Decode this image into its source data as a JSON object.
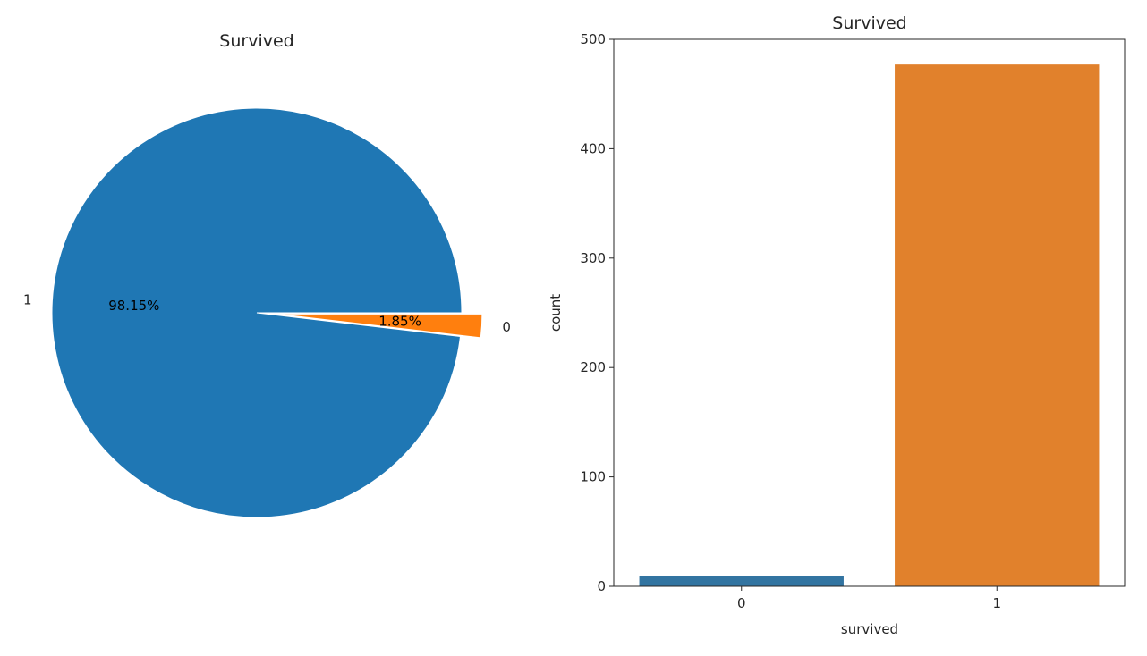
{
  "chart_data": [
    {
      "type": "pie",
      "title": "Survived",
      "labels": [
        "1",
        "0"
      ],
      "values": [
        98.15,
        1.85
      ],
      "pct_labels": [
        "98.15%",
        "1.85%"
      ],
      "colors": [
        "#1f77b4",
        "#ff7f0e"
      ],
      "explode": [
        0,
        0.1
      ],
      "legend": "none"
    },
    {
      "type": "bar",
      "title": "Survived",
      "xlabel": "survived",
      "ylabel": "count",
      "categories": [
        "0",
        "1"
      ],
      "values": [
        9,
        477
      ],
      "colors": [
        "#3274a1",
        "#e1812c"
      ],
      "ylim": [
        0,
        500
      ],
      "yticks": [
        "0",
        "100",
        "200",
        "300",
        "400",
        "500"
      ],
      "grid": false,
      "legend": "none"
    }
  ]
}
